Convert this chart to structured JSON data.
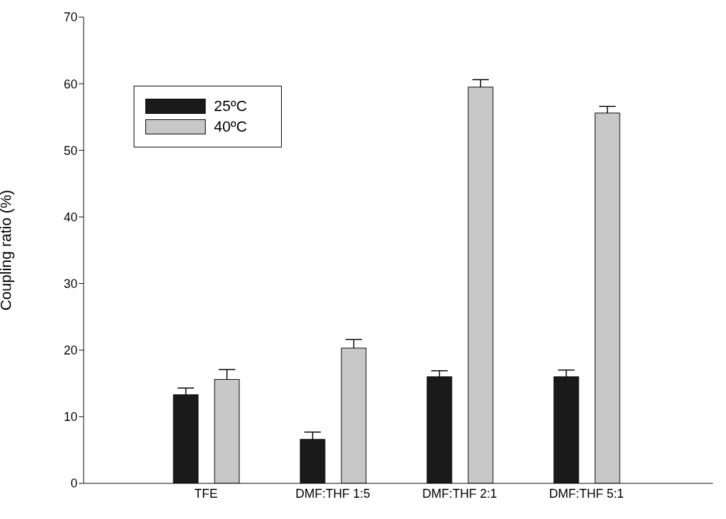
{
  "chart_data": {
    "type": "bar",
    "ylabel": "Coupling ratio (%)",
    "categories": [
      "TFE",
      "DMF:THF 1:5",
      "DMF:THF 2:1",
      "DMF:THF 5:1"
    ],
    "series": [
      {
        "name": "25ºC",
        "color": "#1a1a1a",
        "values": [
          13.3,
          6.6,
          16.0,
          16.0
        ],
        "errors": [
          [
            13.3,
            14.3
          ],
          [
            6.6,
            7.7
          ],
          [
            16.0,
            16.9
          ],
          [
            16.0,
            17.0
          ]
        ]
      },
      {
        "name": "40ºC",
        "color": "#c8c8c8",
        "values": [
          15.6,
          20.3,
          59.5,
          55.6
        ],
        "errors": [
          [
            15.6,
            17.1
          ],
          [
            20.3,
            21.6
          ],
          [
            59.5,
            60.6
          ],
          [
            55.6,
            56.6
          ]
        ]
      }
    ],
    "ylim": [
      0,
      70
    ],
    "yticks": [
      0,
      10,
      20,
      30,
      40,
      50,
      60,
      70
    ],
    "grid": false,
    "legend": "top left"
  }
}
